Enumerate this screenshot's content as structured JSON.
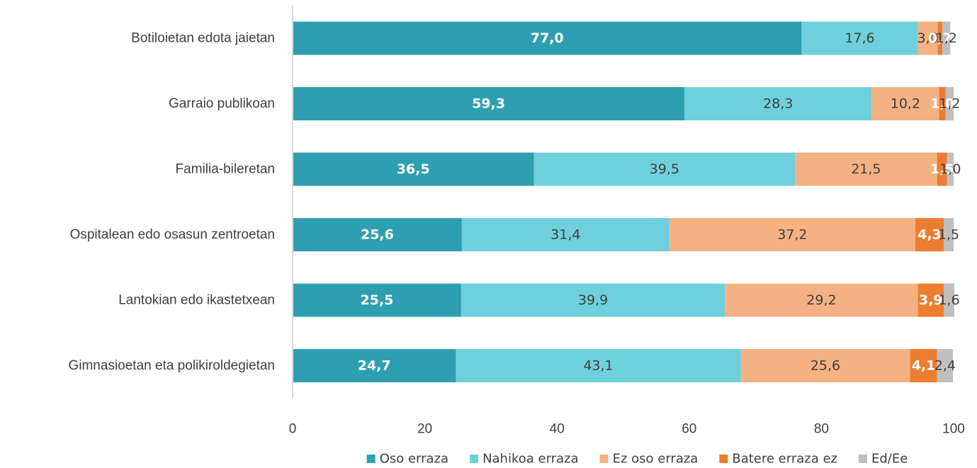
{
  "chart_data": {
    "type": "bar",
    "orientation": "horizontal",
    "stacked": true,
    "title": "",
    "xlabel": "",
    "ylabel": "",
    "xlim": [
      0,
      100
    ],
    "x_ticks": [
      "0",
      "20",
      "40",
      "60",
      "80",
      "100"
    ],
    "grid": false,
    "legend_position": "bottom",
    "categories": [
      "Botiloietan edota jaietan",
      "Garraio publikoan",
      "Familia-bileretan",
      "Ospitalean edo osasun zentroetan",
      "Lantokian edo ikastetxean",
      "Gimnasioetan eta polikiroldegietan"
    ],
    "series": [
      {
        "name": "Oso erraza",
        "color": "#2e9fb0",
        "label_color": "#ffffff",
        "bold": true,
        "values": [
          77.0,
          59.3,
          36.5,
          25.6,
          25.5,
          24.7
        ],
        "labels": [
          "77,0",
          "59,3",
          "36,5",
          "25,6",
          "25,5",
          "24,7"
        ]
      },
      {
        "name": "Nahikoa erraza",
        "color": "#6dd0dc",
        "label_color": "#404040",
        "bold": false,
        "values": [
          17.6,
          28.3,
          39.5,
          31.4,
          39.9,
          43.1
        ],
        "labels": [
          "17,6",
          "28,3",
          "39,5",
          "31,4",
          "39,9",
          "43,1"
        ]
      },
      {
        "name": "Ez oso erraza",
        "color": "#f4b183",
        "label_color": "#404040",
        "bold": false,
        "values": [
          3.0,
          10.2,
          21.5,
          37.2,
          29.2,
          25.6
        ],
        "labels": [
          "3,0",
          "10,2",
          "21,5",
          "37,2",
          "29,2",
          "25,6"
        ]
      },
      {
        "name": "Batere erraza ez",
        "color": "#ed7d31",
        "label_color": "#ffffff",
        "bold": true,
        "values": [
          0.7,
          1.0,
          1.5,
          4.3,
          3.9,
          4.1
        ],
        "labels": [
          "0,7",
          "1,0",
          "1,5",
          "4,3",
          "3,9",
          "4,1"
        ]
      },
      {
        "name": "Ed/Ee",
        "color": "#bfbfbf",
        "label_color": "#404040",
        "bold": false,
        "values": [
          1.2,
          1.2,
          1.0,
          1.5,
          1.6,
          2.4
        ],
        "labels": [
          "1,2",
          "1,2",
          "1,0",
          "1,5",
          "1,6",
          "2,4"
        ]
      }
    ]
  }
}
